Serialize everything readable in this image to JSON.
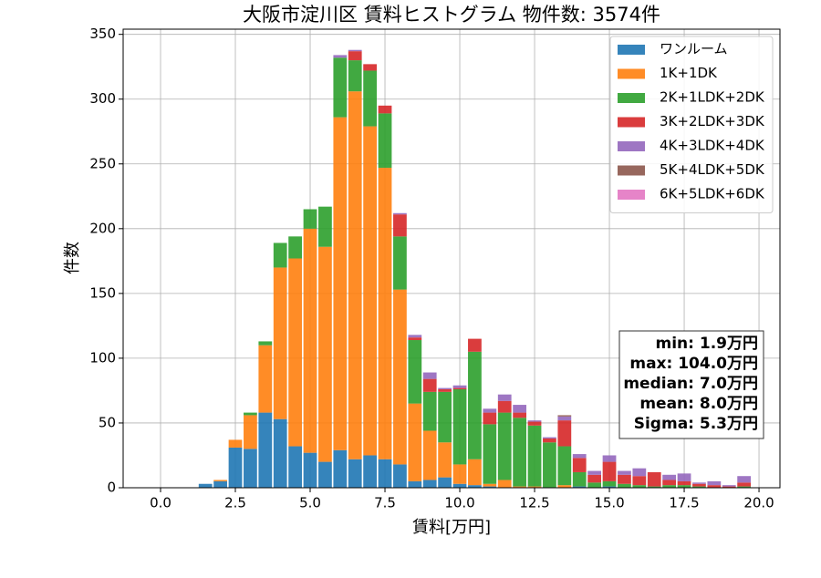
{
  "chart_data": {
    "type": "histogram",
    "title": "大阪市淀川区 賃料ヒストグラム  物件数: 3574件",
    "x_label": "賃料[万円]",
    "y_label": "件数",
    "bins": [
      1.25,
      1.75,
      2.25,
      2.75,
      3.25,
      3.75,
      4.25,
      4.75,
      5.25,
      5.75,
      6.25,
      6.75,
      7.25,
      7.75,
      8.25,
      8.75,
      9.25,
      9.75,
      10.25,
      10.75,
      11.25,
      11.75,
      12.25,
      12.75,
      13.25,
      13.75,
      14.25,
      14.75,
      15.25,
      15.75,
      16.25,
      16.75,
      17.25,
      17.75,
      18.25,
      18.75,
      19.25,
      19.75
    ],
    "series": [
      {
        "name": "ワンルーム",
        "color": "#1f77b4",
        "values": [
          3,
          5,
          31,
          30,
          58,
          53,
          32,
          27,
          20,
          29,
          22,
          25,
          22,
          18,
          5,
          6,
          8,
          3,
          2,
          1,
          0,
          0,
          0,
          0,
          0,
          1,
          0,
          1,
          0,
          0,
          0,
          0,
          0,
          0,
          0,
          0,
          0
        ]
      },
      {
        "name": "1K+1DK",
        "color": "#ff7f0e",
        "values": [
          0,
          1,
          6,
          26,
          52,
          117,
          145,
          173,
          166,
          257,
          284,
          254,
          225,
          135,
          60,
          38,
          27,
          15,
          20,
          2,
          6,
          1,
          1,
          0,
          2,
          0,
          0,
          0,
          0,
          0,
          0,
          0,
          0,
          0,
          0,
          0,
          0
        ]
      },
      {
        "name": "2K+1LDK+2DK",
        "color": "#2ca02c",
        "values": [
          0,
          0,
          0,
          2,
          3,
          19,
          17,
          15,
          31,
          46,
          24,
          43,
          42,
          41,
          49,
          30,
          39,
          58,
          83,
          46,
          52,
          53,
          47,
          35,
          30,
          11,
          4,
          4,
          3,
          2,
          1,
          2,
          2,
          1,
          0,
          0,
          1
        ]
      },
      {
        "name": "3K+2LDK+3DK",
        "color": "#d62728",
        "values": [
          0,
          0,
          0,
          0,
          0,
          0,
          0,
          0,
          0,
          0,
          7,
          5,
          6,
          17,
          2,
          10,
          2,
          1,
          10,
          9,
          9,
          4,
          3,
          3,
          20,
          11,
          6,
          15,
          7,
          7,
          11,
          4,
          3,
          2,
          2,
          1,
          3
        ]
      },
      {
        "name": "4K+3LDK+4DK",
        "color": "#9467bd",
        "values": [
          0,
          0,
          0,
          0,
          0,
          0,
          0,
          0,
          0,
          2,
          1,
          0,
          0,
          1,
          2,
          5,
          1,
          2,
          0,
          3,
          5,
          6,
          1,
          1,
          3,
          3,
          3,
          5,
          3,
          6,
          0,
          4,
          6,
          1,
          3,
          1,
          5
        ]
      },
      {
        "name": "5K+4LDK+5DK",
        "color": "#8c564b",
        "values": [
          0,
          0,
          0,
          0,
          0,
          0,
          0,
          0,
          0,
          0,
          0,
          0,
          0,
          0,
          0,
          0,
          0,
          0,
          0,
          0,
          0,
          0,
          0,
          0,
          1,
          0,
          0,
          0,
          0,
          0,
          0,
          0,
          0,
          0,
          0,
          0,
          0
        ]
      },
      {
        "name": "6K+5LDK+6DK",
        "color": "#e377c2",
        "values": [
          0,
          0,
          0,
          0,
          0,
          0,
          0,
          0,
          0,
          0,
          0,
          0,
          0,
          0,
          0,
          0,
          0,
          0,
          0,
          0,
          0,
          0,
          0,
          0,
          0,
          0,
          0,
          0,
          0,
          0,
          0,
          0,
          0,
          0,
          0,
          0,
          0
        ]
      }
    ],
    "xlim": [
      -1.25,
      20.7
    ],
    "ylim": [
      0,
      354
    ],
    "xticks": [
      {
        "value": 0,
        "label": "0.0"
      },
      {
        "value": 2.5,
        "label": "2.5"
      },
      {
        "value": 5,
        "label": "5.0"
      },
      {
        "value": 7.5,
        "label": "7.5"
      },
      {
        "value": 10,
        "label": "10.0"
      },
      {
        "value": 12.5,
        "label": "12.5"
      },
      {
        "value": 15,
        "label": "15.0"
      },
      {
        "value": 17.5,
        "label": "17.5"
      },
      {
        "value": 20,
        "label": "20.0"
      }
    ],
    "yticks": [
      0,
      50,
      100,
      150,
      200,
      250,
      300,
      350
    ],
    "grid": true,
    "legend": "upper right",
    "annotations": [
      "min: 1.9万円",
      "max: 104.0万円",
      "median: 7.0万円",
      "mean: 8.0万円",
      "Sigma: 5.3万円"
    ]
  }
}
